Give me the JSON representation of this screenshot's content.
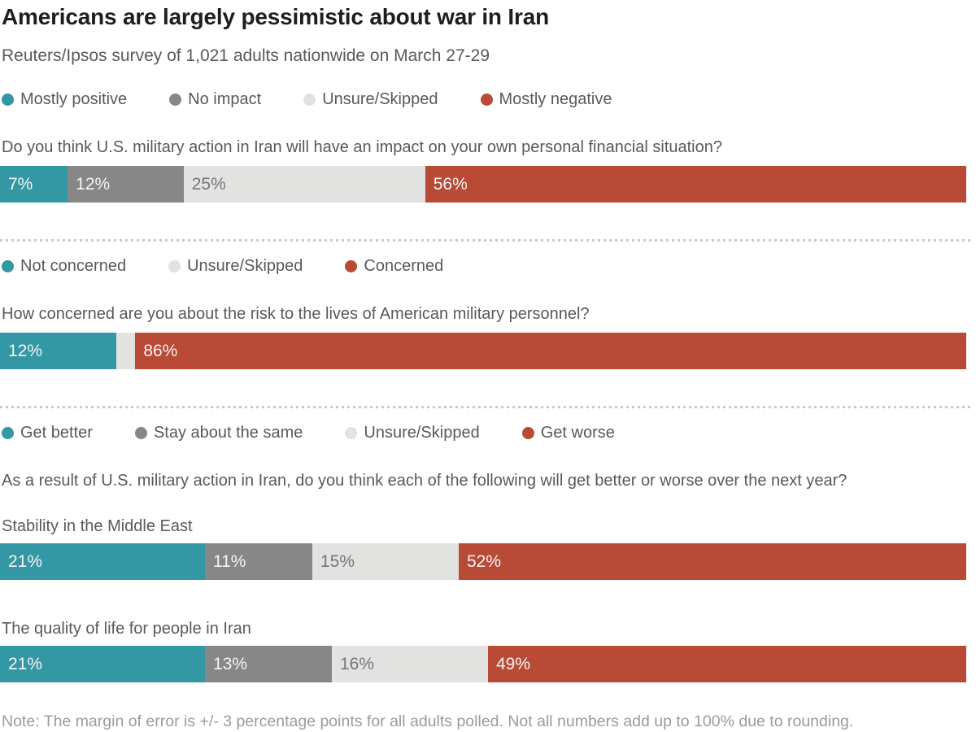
{
  "header": {
    "title": "Americans are largely pessimistic about war in Iran",
    "subtitle": "Reuters/Ipsos survey of 1,021 adults nationwide on March 27-29"
  },
  "note": "Note:  The margin of error is +/- 3 percentage points for all adults polled. Not all numbers add up to 100% due to rounding.",
  "colors": {
    "teal": "#3397a4",
    "gray": "#878787",
    "light_gray": "#e2e2e1",
    "red": "#b94a35",
    "title_text": "#1e1e1e",
    "body_text": "#58595b",
    "note_text": "#9b9b9b",
    "value_on_dark": "#f6f4f3",
    "value_on_light": "#767676"
  },
  "chart_data": [
    {
      "type": "bar",
      "orientation": "horizontal",
      "stacked": true,
      "xlim": [
        0,
        100
      ],
      "unit": "%",
      "grid": false,
      "legend_position": "top",
      "legend": [
        {
          "label": "Mostly positive",
          "color": "teal"
        },
        {
          "label": "No impact",
          "color": "gray"
        },
        {
          "label": "Unsure/Skipped",
          "color": "light_gray"
        },
        {
          "label": "Mostly negative",
          "color": "red"
        }
      ],
      "question": "Do you think U.S. military action in Iran will have an impact on your own personal financial situation?",
      "bars": [
        {
          "label": "",
          "segments": [
            {
              "category": "Mostly positive",
              "value": 7,
              "display": "7%",
              "color": "teal"
            },
            {
              "category": "No impact",
              "value": 12,
              "display": "12%",
              "color": "gray"
            },
            {
              "category": "Unsure/Skipped",
              "value": 25,
              "display": "25%",
              "color": "light_gray"
            },
            {
              "category": "Mostly negative",
              "value": 56,
              "display": "56%",
              "color": "red"
            }
          ]
        }
      ]
    },
    {
      "type": "bar",
      "orientation": "horizontal",
      "stacked": true,
      "xlim": [
        0,
        100
      ],
      "unit": "%",
      "grid": false,
      "legend_position": "top",
      "legend": [
        {
          "label": "Not concerned",
          "color": "teal"
        },
        {
          "label": "Unsure/Skipped",
          "color": "light_gray"
        },
        {
          "label": "Concerned",
          "color": "red"
        }
      ],
      "question": "How concerned are you about the risk to the lives of American military personnel?",
      "bars": [
        {
          "label": "",
          "segments": [
            {
              "category": "Not concerned",
              "value": 12,
              "display": "12%",
              "color": "teal"
            },
            {
              "category": "Unsure/Skipped",
              "value": 2,
              "display": "",
              "color": "light_gray"
            },
            {
              "category": "Concerned",
              "value": 86,
              "display": "86%",
              "color": "red"
            }
          ]
        }
      ]
    },
    {
      "type": "bar",
      "orientation": "horizontal",
      "stacked": true,
      "xlim": [
        0,
        100
      ],
      "unit": "%",
      "grid": false,
      "legend_position": "top",
      "legend": [
        {
          "label": "Get better",
          "color": "teal"
        },
        {
          "label": "Stay about the same",
          "color": "gray"
        },
        {
          "label": "Unsure/Skipped",
          "color": "light_gray"
        },
        {
          "label": "Get worse",
          "color": "red"
        }
      ],
      "question": "As a result of U.S. military action in Iran, do you think each of the following will get better or worse over the next year?",
      "bars": [
        {
          "label": "Stability in the Middle East",
          "segments": [
            {
              "category": "Get better",
              "value": 21,
              "display": "21%",
              "color": "teal"
            },
            {
              "category": "Stay about the same",
              "value": 11,
              "display": "11%",
              "color": "gray"
            },
            {
              "category": "Unsure/Skipped",
              "value": 15,
              "display": "15%",
              "color": "light_gray"
            },
            {
              "category": "Get worse",
              "value": 52,
              "display": "52%",
              "color": "red"
            }
          ]
        },
        {
          "label": "The quality of life for people in Iran",
          "segments": [
            {
              "category": "Get better",
              "value": 21,
              "display": "21%",
              "color": "teal"
            },
            {
              "category": "Stay about the same",
              "value": 13,
              "display": "13%",
              "color": "gray"
            },
            {
              "category": "Unsure/Skipped",
              "value": 16,
              "display": "16%",
              "color": "light_gray"
            },
            {
              "category": "Get worse",
              "value": 49,
              "display": "49%",
              "color": "red"
            }
          ]
        }
      ]
    }
  ]
}
